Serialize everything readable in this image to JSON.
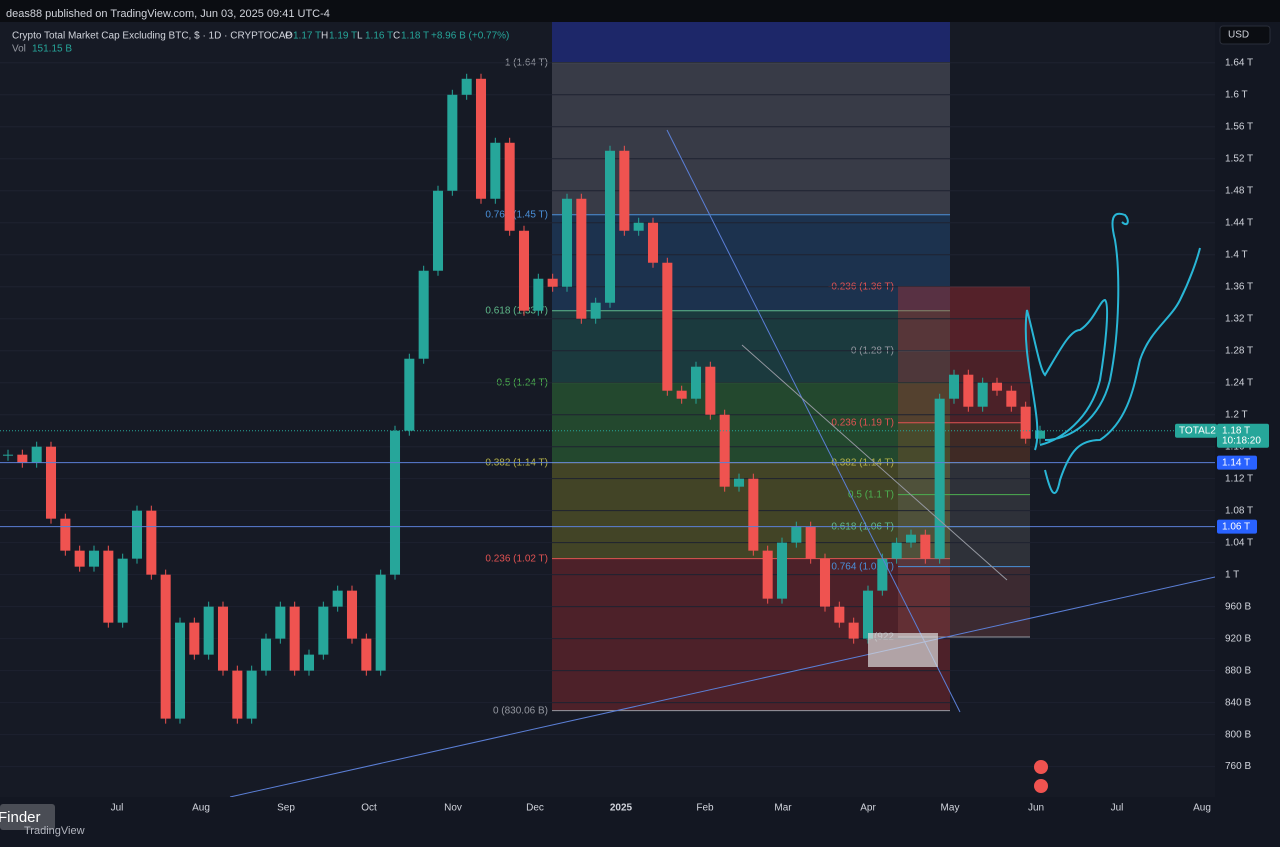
{
  "header": {
    "published": "deas88 published on TradingView.com, Jun 03, 2025 09:41 UTC-4"
  },
  "legend": {
    "symbol": "Crypto Total Market Cap Excluding BTC, $ · 1D · CRYPTOCAP",
    "ohlc": [
      {
        "key": "O",
        "value": "1.17 T"
      },
      {
        "key": "H",
        "value": "1.19 T"
      },
      {
        "key": "L",
        "value": "1.16 T"
      },
      {
        "key": "C",
        "value": "1.18 T"
      }
    ],
    "change": "+8.96 B (+0.77%)",
    "vol_label": "Vol",
    "vol_value": "151.15 B"
  },
  "currency": "USD",
  "chart": {
    "ylim": [
      722,
      1691
    ],
    "yticks": [
      {
        "value": 1640,
        "label": "1.64 T"
      },
      {
        "value": 1600,
        "label": "1.6 T"
      },
      {
        "value": 1560,
        "label": "1.56 T"
      },
      {
        "value": 1520,
        "label": "1.52 T"
      },
      {
        "value": 1480,
        "label": "1.48 T"
      },
      {
        "value": 1440,
        "label": "1.44 T"
      },
      {
        "value": 1400,
        "label": "1.4 T"
      },
      {
        "value": 1360,
        "label": "1.36 T"
      },
      {
        "value": 1320,
        "label": "1.32 T"
      },
      {
        "value": 1280,
        "label": "1.28 T"
      },
      {
        "value": 1240,
        "label": "1.24 T"
      },
      {
        "value": 1200,
        "label": "1.2 T"
      },
      {
        "value": 1160,
        "label": "1.16 T"
      },
      {
        "value": 1120,
        "label": "1.12 T"
      },
      {
        "value": 1080,
        "label": "1.08 T"
      },
      {
        "value": 1040,
        "label": "1.04 T"
      },
      {
        "value": 1000,
        "label": "1 T"
      },
      {
        "value": 960,
        "label": "960 B"
      },
      {
        "value": 920,
        "label": "920 B"
      },
      {
        "value": 880,
        "label": "880 B"
      },
      {
        "value": 840,
        "label": "840 B"
      },
      {
        "value": 800,
        "label": "800 B"
      },
      {
        "value": 760,
        "label": "760 B"
      }
    ],
    "time_labels": [
      "Jul",
      "Aug",
      "Sep",
      "Oct",
      "Nov",
      "Dec",
      "2025",
      "Feb",
      "Mar",
      "Apr",
      "May",
      "Jun",
      "Jul",
      "Aug"
    ],
    "closes": [
      1150,
      1140,
      1160,
      1070,
      1030,
      1010,
      1030,
      940,
      1020,
      1080,
      1000,
      820,
      940,
      900,
      960,
      880,
      820,
      880,
      920,
      960,
      880,
      900,
      960,
      980,
      920,
      880,
      1000,
      1180,
      1270,
      1380,
      1480,
      1600,
      1620,
      1470,
      1540,
      1430,
      1330,
      1370,
      1360,
      1470,
      1320,
      1340,
      1530,
      1430,
      1440,
      1390,
      1230,
      1220,
      1260,
      1200,
      1110,
      1120,
      1030,
      970,
      1040,
      1060,
      1020,
      960,
      940,
      920,
      980,
      1020,
      1040,
      1050,
      1020,
      1220,
      1250,
      1210,
      1240,
      1230,
      1210,
      1170,
      1180
    ],
    "up_color": "#26a69a",
    "down_color": "#ef5350",
    "hlines": [
      {
        "value": 1140,
        "label": "1.14 T"
      },
      {
        "value": 1060,
        "label": "1.06 T"
      }
    ],
    "last_price": {
      "value": 1180,
      "label": "1.18 T",
      "symbol": "TOTAL2",
      "countdown": "10:18:20"
    },
    "fib_left": [
      {
        "value": 1640,
        "label": "1 (1.64 T)",
        "color": "#9598a1",
        "fill": "rgba(120,123,134,0.35)"
      },
      {
        "value": 1450,
        "label": "0.764 (1.45 T)",
        "color": "#4a90d9",
        "fill": "rgba(41,98,155,0.35)"
      },
      {
        "value": 1330,
        "label": "0.618 (1.33 T)",
        "color": "#5fb98a",
        "fill": "rgba(38,120,110,0.35)"
      },
      {
        "value": 1240,
        "label": "0.5 (1.24 T)",
        "color": "#4caf50",
        "fill": "rgba(56,142,60,0.4)"
      },
      {
        "value": 1140,
        "label": "0.382 (1.14 T)",
        "color": "#b5b34a",
        "fill": "rgba(150,150,40,0.35)"
      },
      {
        "value": 1020,
        "label": "0.236 (1.02 T)",
        "color": "#e05252",
        "fill": "rgba(180,50,50,0.35)"
      },
      {
        "value": 830,
        "label": "0 (830.06 B)",
        "color": "#9598a1",
        "fill": "none"
      }
    ],
    "fib_right": [
      {
        "value": 1360,
        "label": "-0.236 (1.36 T)",
        "color": "#e05252",
        "fill": "rgba(200,50,50,0.35)"
      },
      {
        "value": 1280,
        "label": "0 (1.28 T)",
        "color": "#9598a1",
        "fill": "rgba(200,50,50,0.3)"
      },
      {
        "value": 1190,
        "label": "0.236 (1.19 T)",
        "color": "#e05252",
        "fill": "rgba(160,80,40,0.3)"
      },
      {
        "value": 1140,
        "label": "0.382 (1.14 T)",
        "color": "#b5b34a",
        "fill": "rgba(120,120,120,0.25)"
      },
      {
        "value": 1100,
        "label": "0.5 (1.1 T)",
        "color": "#4caf50",
        "fill": "rgba(120,120,120,0.25)"
      },
      {
        "value": 1060,
        "label": "0.618 (1.06 T)",
        "color": "#5fb98a",
        "fill": "rgba(120,120,120,0.25)"
      },
      {
        "value": 1010,
        "label": "0.764 (1.01 T)",
        "color": "#4a90d9",
        "fill": "rgba(150,80,80,0.3)"
      },
      {
        "value": 922,
        "label": "1 (922",
        "color": "#9598a1",
        "fill": "none"
      }
    ]
  },
  "footer": {
    "tooltip": "Finder",
    "brand": "TradingView"
  }
}
